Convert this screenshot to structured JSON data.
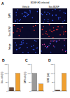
{
  "panel_a": {
    "label": "A",
    "header": "BDNF-HD infected",
    "columns": [
      "Vehicle",
      "Sox-BDNF"
    ],
    "rows": [
      "DAPI",
      "Sox-BDNF",
      "Merge"
    ]
  },
  "chart_data": [
    {
      "type": "bar",
      "title": "B",
      "y_label": "Sox+ cells (%)",
      "categories": [
        null,
        null
      ],
      "values": [
        20,
        100
      ],
      "colors": [
        "#6b4a3a",
        "#f0a030"
      ],
      "ylim": [
        0,
        150
      ],
      "yticks": [
        0,
        50,
        100,
        150
      ],
      "tick_labels": "y",
      "grid": false
    },
    {
      "type": "bar",
      "title": "C",
      "y_label": "DAPI cells (%)",
      "categories": [
        null,
        null
      ],
      "values": [
        100,
        40
      ],
      "colors": [
        "#9a9a9a",
        "#f0a030"
      ],
      "ylim": [
        0,
        150
      ],
      "yticks": [
        0,
        50,
        100,
        150
      ],
      "tick_labels": "y",
      "grid": false
    },
    {
      "type": "bar",
      "title": "D",
      "y_label": "BDNF (fold)",
      "categories": [
        null,
        null
      ],
      "values": [
        5,
        100
      ],
      "colors": [
        "#6b4a3a",
        "#f0a030"
      ],
      "ylim": [
        0,
        150
      ],
      "yticks": [
        0,
        50,
        100,
        150
      ],
      "tick_labels": "y",
      "grid": false
    }
  ]
}
